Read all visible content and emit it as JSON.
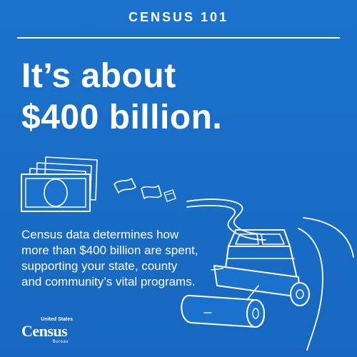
{
  "header": {
    "kicker": "CENSUS 101"
  },
  "headline": {
    "line1": "It’s about",
    "line2": "$400 billion."
  },
  "body_text": "Census data determines how more than $400 billion are spent, supporting your state, county and community’s vital programs.",
  "logo": {
    "top": "United States",
    "main": "Census",
    "bottom": "Bureau"
  },
  "colors": {
    "background": "#1b72cc",
    "foreground": "#ffffff"
  },
  "icons": [
    "money-stack-icon",
    "flying-bill-icon",
    "road-path-icon",
    "steamroller-icon"
  ]
}
